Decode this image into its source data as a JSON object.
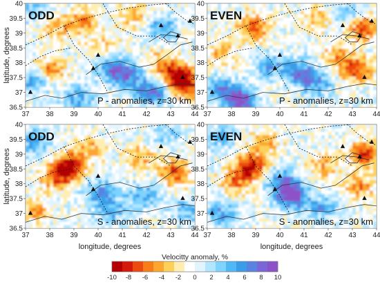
{
  "chart_data": [
    {
      "type": "heatmap",
      "title": "ODD",
      "annotation": "P - anomalies, z=30 km",
      "xlabel": "",
      "ylabel": "latitude, degrees",
      "xlim": [
        37,
        44
      ],
      "ylim": [
        36.5,
        40
      ],
      "x_ticks": [
        "37",
        "38",
        "39",
        "40",
        "41",
        "42",
        "43",
        "44"
      ],
      "y_ticks": [
        "40",
        "39.5",
        "39",
        "38.5",
        "38",
        "37.5",
        "37",
        "36.5"
      ],
      "blobs": [
        {
          "x": 39.3,
          "y": 39.4,
          "v": -5
        },
        {
          "x": 38.2,
          "y": 39.2,
          "v": -4
        },
        {
          "x": 43.3,
          "y": 37.6,
          "v": -9
        },
        {
          "x": 43.6,
          "y": 37.2,
          "v": -7
        },
        {
          "x": 42.6,
          "y": 38.0,
          "v": -4
        },
        {
          "x": 38.0,
          "y": 37.8,
          "v": -5
        },
        {
          "x": 41.5,
          "y": 39.6,
          "v": -4
        },
        {
          "x": 40.2,
          "y": 38.6,
          "v": -3
        },
        {
          "x": 40.6,
          "y": 37.8,
          "v": 7
        },
        {
          "x": 41.3,
          "y": 37.5,
          "v": 6
        },
        {
          "x": 42.3,
          "y": 37.0,
          "v": 8
        },
        {
          "x": 37.3,
          "y": 37.4,
          "v": 5
        },
        {
          "x": 39.2,
          "y": 36.8,
          "v": 5
        },
        {
          "x": 42.6,
          "y": 39.2,
          "v": 5
        },
        {
          "x": 37.3,
          "y": 39.8,
          "v": 4
        }
      ]
    },
    {
      "type": "heatmap",
      "title": "EVEN",
      "annotation": "P - anomalies, z=30 km",
      "xlabel": "",
      "ylabel": "",
      "xlim": [
        37,
        44
      ],
      "ylim": [
        36.5,
        40
      ],
      "x_ticks": [
        "37",
        "38",
        "39",
        "40",
        "41",
        "42",
        "43",
        "44"
      ],
      "y_ticks": [
        "40",
        "39.5",
        "39",
        "38.5",
        "38",
        "37.5",
        "37",
        "36.5"
      ],
      "blobs": [
        {
          "x": 38.9,
          "y": 39.2,
          "v": -7
        },
        {
          "x": 37.6,
          "y": 38.3,
          "v": -4
        },
        {
          "x": 43.4,
          "y": 39.2,
          "v": -8
        },
        {
          "x": 43.2,
          "y": 37.8,
          "v": -7
        },
        {
          "x": 42.4,
          "y": 38.2,
          "v": -4
        },
        {
          "x": 41.5,
          "y": 39.5,
          "v": -3
        },
        {
          "x": 38.4,
          "y": 36.7,
          "v": 10
        },
        {
          "x": 37.6,
          "y": 37.1,
          "v": 6
        },
        {
          "x": 40.8,
          "y": 37.7,
          "v": 7
        },
        {
          "x": 41.5,
          "y": 37.3,
          "v": 5
        },
        {
          "x": 39.6,
          "y": 37.9,
          "v": 5
        },
        {
          "x": 42.9,
          "y": 39.6,
          "v": 4
        }
      ]
    },
    {
      "type": "heatmap",
      "title": "ODD",
      "annotation": "S - anomalies, z=30 km",
      "xlabel": "longitude, degrees",
      "ylabel": "latitude, degrees",
      "xlim": [
        37,
        44
      ],
      "ylim": [
        36.5,
        40
      ],
      "x_ticks": [
        "37",
        "38",
        "39",
        "40",
        "41",
        "42",
        "43",
        "44"
      ],
      "y_ticks": [
        "40",
        "39.5",
        "39",
        "38.5",
        "38",
        "37.5",
        "37",
        "36.5"
      ],
      "blobs": [
        {
          "x": 38.8,
          "y": 38.6,
          "v": -9
        },
        {
          "x": 38.3,
          "y": 38.2,
          "v": -6
        },
        {
          "x": 39.6,
          "y": 39.2,
          "v": -4
        },
        {
          "x": 43.2,
          "y": 38.4,
          "v": -7
        },
        {
          "x": 41.8,
          "y": 38.9,
          "v": -4
        },
        {
          "x": 37.4,
          "y": 37.1,
          "v": -4
        },
        {
          "x": 40.1,
          "y": 37.7,
          "v": 6
        },
        {
          "x": 40.6,
          "y": 37.1,
          "v": 4
        },
        {
          "x": 41.9,
          "y": 37.6,
          "v": 5
        },
        {
          "x": 37.4,
          "y": 39.4,
          "v": 5
        },
        {
          "x": 42.8,
          "y": 39.7,
          "v": 3
        },
        {
          "x": 43.7,
          "y": 37.1,
          "v": 4
        }
      ]
    },
    {
      "type": "heatmap",
      "title": "EVEN",
      "annotation": "S - anomalies, z=30 km",
      "xlabel": "longitude, degrees",
      "ylabel": "",
      "xlim": [
        37,
        44
      ],
      "ylim": [
        36.5,
        40
      ],
      "x_ticks": [
        "37",
        "38",
        "39",
        "40",
        "41",
        "42",
        "43",
        "44"
      ],
      "y_ticks": [
        "40",
        "39.5",
        "39",
        "38.5",
        "38",
        "37.5",
        "37",
        "36.5"
      ],
      "blobs": [
        {
          "x": 38.8,
          "y": 38.6,
          "v": -9
        },
        {
          "x": 38.2,
          "y": 38.1,
          "v": -5
        },
        {
          "x": 43.5,
          "y": 39.0,
          "v": -8
        },
        {
          "x": 43.3,
          "y": 37.9,
          "v": -5
        },
        {
          "x": 41.8,
          "y": 38.6,
          "v": -4
        },
        {
          "x": 39.4,
          "y": 39.4,
          "v": -4
        },
        {
          "x": 40.5,
          "y": 37.6,
          "v": 10
        },
        {
          "x": 40.1,
          "y": 38.1,
          "v": 6
        },
        {
          "x": 37.6,
          "y": 37.0,
          "v": 5
        },
        {
          "x": 41.8,
          "y": 37.2,
          "v": 5
        },
        {
          "x": 37.5,
          "y": 39.6,
          "v": 4
        }
      ]
    }
  ],
  "colorbar": {
    "title": "Velocitty anomaly, %",
    "tick_labels": [
      "-10",
      "-8",
      "-6",
      "-4",
      "-2",
      "0",
      "2",
      "4",
      "6",
      "8",
      "10"
    ],
    "range": [
      -10,
      10
    ],
    "colors": [
      "#b40000",
      "#d61a0a",
      "#ec4a10",
      "#f87c18",
      "#fca62e",
      "#fdd05a",
      "#ffeeb0",
      "#ffffff",
      "#e2f4ff",
      "#b2e6ff",
      "#7fd3ff",
      "#50b8f4",
      "#3b9ce8",
      "#5a82e0",
      "#7a66d6",
      "#8c52c8"
    ]
  },
  "colors": {
    "fault_line": "#111111",
    "coast_line": "#333333",
    "station": "#111111"
  }
}
